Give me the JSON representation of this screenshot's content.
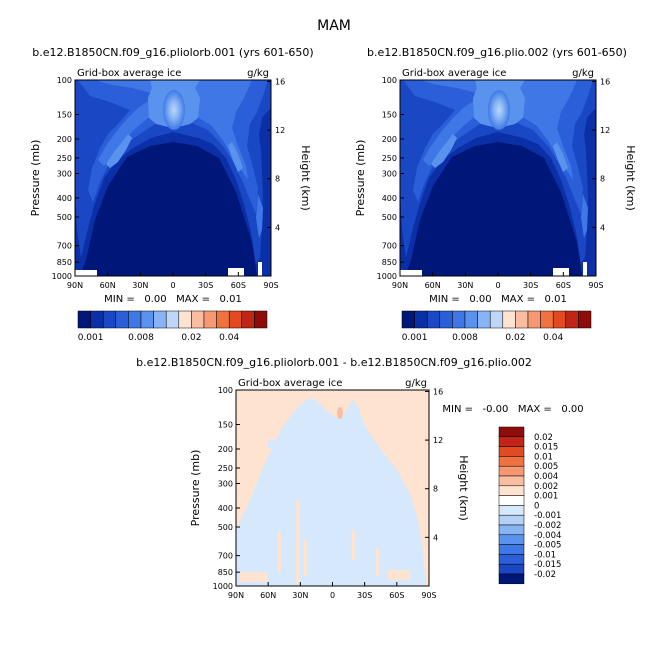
{
  "figure": {
    "title": "MAM",
    "panel_a": {
      "case": "b.e12.B1850CN.f09_g16.pliolorb.001 (yrs 601-650)",
      "variable": "Grid-box average ice",
      "units": "g/kg",
      "stats": "MIN =   0.00   MAX =   0.01"
    },
    "panel_b": {
      "case": "b.e12.B1850CN.f09_g16.plio.002 (yrs 601-650)",
      "variable": "Grid-box average ice",
      "units": "g/kg",
      "stats": "MIN =   0.00   MAX =   0.01"
    },
    "panel_diff": {
      "case": "b.e12.B1850CN.f09_g16.pliolorb.001 - b.e12.B1850CN.f09_g16.plio.002",
      "variable": "Grid-box average ice",
      "units": "g/kg",
      "stats": "MIN =   -0.00   MAX =   0.00"
    }
  },
  "chart_data": [
    {
      "type": "heatmap",
      "title": "b.e12.B1850CN.f09_g16.pliolorb.001 (yrs 601-650)",
      "subtitle": "Grid-box average ice",
      "units": "g/kg",
      "xlabel": "",
      "ylabel": "Pressure (mb)",
      "ylabel_right": "Height (km)",
      "x_ticks": [
        "90N",
        "60N",
        "30N",
        "0",
        "30S",
        "60S",
        "90S"
      ],
      "y_ticks": [
        100,
        150,
        200,
        250,
        300,
        400,
        500,
        700,
        850,
        1000
      ],
      "y_ticks_right": [
        4,
        8,
        12,
        16
      ],
      "xlim": [
        90,
        -90
      ],
      "ylim": [
        1000,
        100
      ],
      "y_scale": "log",
      "min": 0.0,
      "max": 0.01,
      "colorbar_labels": [
        "0.001",
        "0.008",
        "0.02",
        "0.04"
      ],
      "colorbar_colors": [
        "#00177a",
        "#0b2fa6",
        "#1a47c4",
        "#2b5fda",
        "#3f78e6",
        "#5a93ee",
        "#86b4f4",
        "#bed7f8",
        "#fde3d0",
        "#f9bea1",
        "#f69871",
        "#f0733f",
        "#e24a20",
        "#c02615",
        "#8e0d0a"
      ],
      "features": "ice maximum near 0 at 200-300 mb; arch of elevated values over tropics and midlatitudes; near-zero dome below 500 mb"
    },
    {
      "type": "heatmap",
      "title": "b.e12.B1850CN.f09_g16.plio.002 (yrs 601-650)",
      "subtitle": "Grid-box average ice",
      "units": "g/kg",
      "xlabel": "",
      "ylabel": "Pressure (mb)",
      "ylabel_right": "Height (km)",
      "x_ticks": [
        "90N",
        "60N",
        "30N",
        "0",
        "30S",
        "60S",
        "90S"
      ],
      "y_ticks": [
        100,
        150,
        200,
        250,
        300,
        400,
        500,
        700,
        850,
        1000
      ],
      "y_ticks_right": [
        4,
        8,
        12,
        16
      ],
      "xlim": [
        90,
        -90
      ],
      "ylim": [
        1000,
        100
      ],
      "y_scale": "log",
      "min": 0.0,
      "max": 0.01,
      "colorbar_labels": [
        "0.001",
        "0.008",
        "0.02",
        "0.04"
      ],
      "colorbar_colors": [
        "#00177a",
        "#0b2fa6",
        "#1a47c4",
        "#2b5fda",
        "#3f78e6",
        "#5a93ee",
        "#86b4f4",
        "#bed7f8",
        "#fde3d0",
        "#f9bea1",
        "#f69871",
        "#f0733f",
        "#e24a20",
        "#c02615",
        "#8e0d0a"
      ],
      "features": "nearly identical to panel a"
    },
    {
      "type": "heatmap",
      "title": "b.e12.B1850CN.f09_g16.pliolorb.001 - b.e12.B1850CN.f09_g16.plio.002",
      "subtitle": "Grid-box average ice",
      "units": "g/kg",
      "xlabel": "",
      "ylabel": "Pressure (mb)",
      "ylabel_right": "Height (km)",
      "x_ticks": [
        "90N",
        "60N",
        "30N",
        "0",
        "30S",
        "60S",
        "90S"
      ],
      "y_ticks": [
        100,
        150,
        200,
        250,
        300,
        400,
        500,
        700,
        850,
        1000
      ],
      "y_ticks_right": [
        4,
        8,
        12,
        16
      ],
      "xlim": [
        90,
        -90
      ],
      "ylim": [
        1000,
        100
      ],
      "y_scale": "log",
      "min": -0.0,
      "max": 0.0,
      "legend_labels": [
        "0.02",
        "0.015",
        "0.01",
        "0.005",
        "0.004",
        "0.002",
        "0.001",
        "0",
        "-0.001",
        "-0.002",
        "-0.004",
        "-0.005",
        "-0.01",
        "-0.015",
        "-0.02"
      ],
      "legend_colors": [
        "#8e0d0a",
        "#c02615",
        "#e24a20",
        "#f0733f",
        "#f69871",
        "#f9bea1",
        "#fde3d0",
        "#ffffff",
        "#d6e8fb",
        "#b4d0f6",
        "#86b4f4",
        "#5a93ee",
        "#3f78e6",
        "#2b5fda",
        "#1a47c4",
        "#00177a"
      ],
      "features": "mostly 0 to 0.001 (light peach) above ~300 mb and at edges; -0.001 to 0 (light blue) across most of the troposphere"
    }
  ]
}
